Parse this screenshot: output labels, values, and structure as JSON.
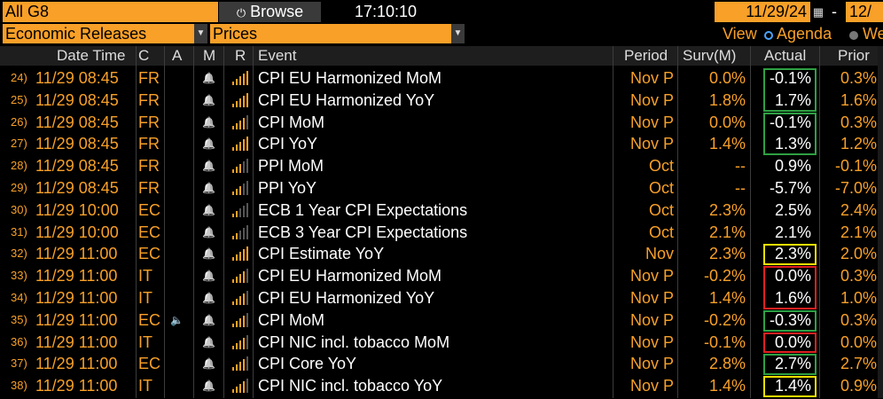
{
  "toolbar": {
    "filter_value": "All G8",
    "browse_label": "Browse",
    "time": "17:10:10",
    "date_start": "11/29/24",
    "date_sep": "-",
    "date_end": "12/"
  },
  "selectors": {
    "calendar_type": "Economic Releases",
    "mode": "Prices"
  },
  "view": {
    "label": "View",
    "option_agenda": "Agenda",
    "option_week": "We"
  },
  "columns": {
    "datetime": "Date Time",
    "country": "C",
    "alert": "A",
    "market": "M",
    "relevance": "R",
    "event": "Event",
    "period": "Period",
    "survey": "Surv(M)",
    "actual": "Actual",
    "prior": "Prior"
  },
  "rows": [
    {
      "n": "24)",
      "dt": "11/29 08:45",
      "c": "FR",
      "speaker": "",
      "ev": "CPI EU Harmonized MoM",
      "per": "Nov P",
      "surv": "0.0%",
      "act": "-0.1%",
      "pri": "0.3%",
      "rel": 5
    },
    {
      "n": "25)",
      "dt": "11/29 08:45",
      "c": "FR",
      "speaker": "",
      "ev": "CPI EU Harmonized YoY",
      "per": "Nov P",
      "surv": "1.8%",
      "act": "1.7%",
      "pri": "1.6%",
      "rel": 5
    },
    {
      "n": "26)",
      "dt": "11/29 08:45",
      "c": "FR",
      "speaker": "",
      "ev": "CPI MoM",
      "per": "Nov P",
      "surv": "0.0%",
      "act": "-0.1%",
      "pri": "0.3%",
      "rel": 4
    },
    {
      "n": "27)",
      "dt": "11/29 08:45",
      "c": "FR",
      "speaker": "",
      "ev": "CPI YoY",
      "per": "Nov P",
      "surv": "1.4%",
      "act": "1.3%",
      "pri": "1.2%",
      "rel": 5
    },
    {
      "n": "28)",
      "dt": "11/29 08:45",
      "c": "FR",
      "speaker": "",
      "ev": "PPI MoM",
      "per": "Oct",
      "surv": "--",
      "act": "0.9%",
      "pri": "-0.1%",
      "rel": 3
    },
    {
      "n": "29)",
      "dt": "11/29 08:45",
      "c": "FR",
      "speaker": "",
      "ev": "PPI YoY",
      "per": "Oct",
      "surv": "--",
      "act": "-5.7%",
      "pri": "-7.0%",
      "rel": 3
    },
    {
      "n": "30)",
      "dt": "11/29 10:00",
      "c": "EC",
      "speaker": "",
      "ev": "ECB 1 Year CPI Expectations",
      "per": "Oct",
      "surv": "2.3%",
      "act": "2.5%",
      "pri": "2.4%",
      "rel": 2
    },
    {
      "n": "31)",
      "dt": "11/29 10:00",
      "c": "EC",
      "speaker": "",
      "ev": "ECB 3 Year CPI Expectations",
      "per": "Oct",
      "surv": "2.1%",
      "act": "2.1%",
      "pri": "2.1%",
      "rel": 2
    },
    {
      "n": "32)",
      "dt": "11/29 11:00",
      "c": "EC",
      "speaker": "",
      "ev": "CPI Estimate YoY",
      "per": "Nov",
      "surv": "2.3%",
      "act": "2.3%",
      "pri": "2.0%",
      "rel": 5
    },
    {
      "n": "33)",
      "dt": "11/29 11:00",
      "c": "IT",
      "speaker": "",
      "ev": "CPI EU Harmonized MoM",
      "per": "Nov P",
      "surv": "-0.2%",
      "act": "0.0%",
      "pri": "0.3%",
      "rel": 4
    },
    {
      "n": "34)",
      "dt": "11/29 11:00",
      "c": "IT",
      "speaker": "",
      "ev": "CPI EU Harmonized YoY",
      "per": "Nov P",
      "surv": "1.4%",
      "act": "1.6%",
      "pri": "1.0%",
      "rel": 4
    },
    {
      "n": "35)",
      "dt": "11/29 11:00",
      "c": "EC",
      "speaker": "speaker",
      "ev": "CPI MoM",
      "per": "Nov P",
      "surv": "-0.2%",
      "act": "-0.3%",
      "pri": "0.3%",
      "rel": 4
    },
    {
      "n": "36)",
      "dt": "11/29 11:00",
      "c": "IT",
      "speaker": "",
      "ev": "CPI NIC incl. tobacco MoM",
      "per": "Nov P",
      "surv": "-0.1%",
      "act": "0.0%",
      "pri": "0.0%",
      "rel": 4
    },
    {
      "n": "37)",
      "dt": "11/29 11:00",
      "c": "EC",
      "speaker": "",
      "ev": "CPI Core YoY",
      "per": "Nov P",
      "surv": "2.8%",
      "act": "2.7%",
      "pri": "2.7%",
      "rel": 4
    },
    {
      "n": "38)",
      "dt": "11/29 11:00",
      "c": "IT",
      "speaker": "",
      "ev": "CPI NIC incl. tobacco YoY",
      "per": "Nov P",
      "surv": "1.4%",
      "act": "1.4%",
      "pri": "0.9%",
      "rel": 4
    }
  ],
  "highlights": [
    {
      "from": 0,
      "to": 1,
      "color": "#2ea043"
    },
    {
      "from": 2,
      "to": 3,
      "color": "#2ea043"
    },
    {
      "from": 8,
      "to": 8,
      "color": "#f0e000"
    },
    {
      "from": 9,
      "to": 10,
      "color": "#e02020"
    },
    {
      "from": 11,
      "to": 11,
      "color": "#2ea043"
    },
    {
      "from": 12,
      "to": 12,
      "color": "#e02020"
    },
    {
      "from": 13,
      "to": 13,
      "color": "#2ea043"
    },
    {
      "from": 14,
      "to": 14,
      "color": "#f0e000"
    }
  ],
  "colors": {
    "accent": "#f8a028",
    "bar_on": "#f8a028",
    "bar_off": "#555555"
  }
}
